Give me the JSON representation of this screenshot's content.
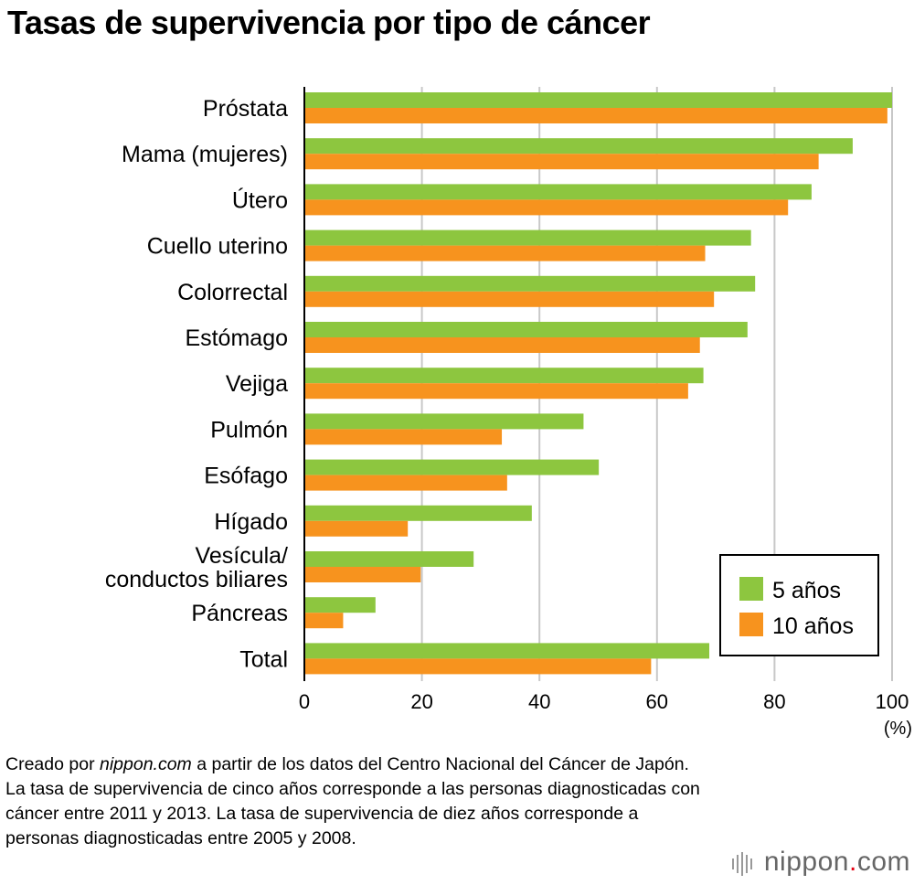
{
  "title": "Tasas de supervivencia por tipo de cáncer",
  "chart_data": {
    "type": "bar",
    "orientation": "horizontal",
    "categories": [
      "Próstata",
      "Mama (mujeres)",
      "Útero",
      "Cuello uterino",
      "Colorrectal",
      "Estómago",
      "Vejiga",
      "Pulmón",
      "Esófago",
      "Hígado",
      "Vesícula/\nconductos biliares",
      "Páncreas",
      "Total"
    ],
    "series": [
      {
        "name": "5 años",
        "color": "#8dc63f",
        "values": [
          100.0,
          93.3,
          86.3,
          76.0,
          76.7,
          75.4,
          67.9,
          47.5,
          50.1,
          38.7,
          28.8,
          12.1,
          68.9
        ]
      },
      {
        "name": "10 años",
        "color": "#f7931e",
        "values": [
          99.2,
          87.5,
          82.3,
          68.2,
          69.7,
          67.3,
          65.3,
          33.6,
          34.5,
          17.6,
          19.8,
          6.6,
          59.0
        ]
      }
    ],
    "xlim": [
      0,
      100
    ],
    "xticks": [
      "0",
      "20",
      "40",
      "60",
      "80",
      "100"
    ],
    "xunit": "(%)",
    "grid": true,
    "legend_position": "bottom-right"
  },
  "note": {
    "prefix": "Creado por ",
    "source": "nippon.com",
    "text": " a partir de los datos del Centro Nacional del Cáncer de Japón. La tasa de supervivencia de cinco años corresponde a las personas diagnosticadas con cáncer entre 2011 y 2013. La tasa de supervivencia de diez años corresponde a personas diagnosticadas entre 2005 y 2008."
  },
  "logo": {
    "name": "nippon",
    "dot": ".",
    "tld": "com"
  }
}
